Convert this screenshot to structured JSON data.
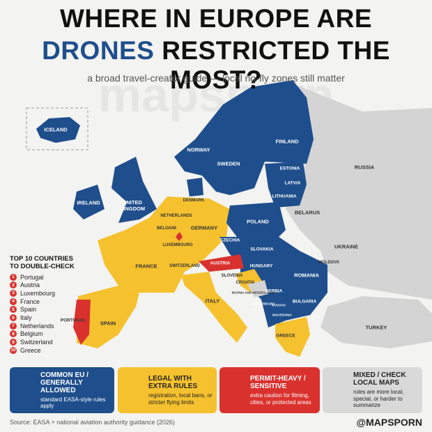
{
  "header": {
    "title_line1": "WHERE IN EUROPE ARE",
    "title_highlight": "DRONES",
    "title_line2": "RESTRICTED THE MOST?",
    "subtitle": "a broad travel-creator guide — local no-fly zones still matter"
  },
  "watermark": "mapsporn",
  "map": {
    "labels": [
      "ICELAND",
      "NORWAY",
      "SWEDEN",
      "FINLAND",
      "RUSSIA",
      "ESTONIA",
      "LATVIA",
      "LITHUANIA",
      "DENMARK",
      "IRELAND",
      "UNITED KINGDOM",
      "NETHERLANDS",
      "BELGIUM",
      "LUXEMBOURG",
      "GERMANY",
      "POLAND",
      "BELARUS",
      "CZECHIA",
      "SLOVAKIA",
      "UKRAINE",
      "MOLDOVA",
      "FRANCE",
      "SWITZERLAND",
      "AUSTRIA",
      "HUNGARY",
      "ROMANIA",
      "SLOVENIA",
      "CROATIA",
      "BOSNIA AND HERZEGOVINA",
      "SERBIA",
      "MONTENEGRO",
      "KOSOVO",
      "MACEDONIA",
      "BULGARIA",
      "ITALY",
      "PORTUGAL",
      "SPAIN",
      "GREECE",
      "TURKEY"
    ]
  },
  "top_list": {
    "title": "TOP 10 COUNTRIES TO DOUBLE-CHECK",
    "items": [
      {
        "rank": 1,
        "name": "Portugal"
      },
      {
        "rank": 2,
        "name": "Austria"
      },
      {
        "rank": 3,
        "name": "Luxembourg"
      },
      {
        "rank": 4,
        "name": "France"
      },
      {
        "rank": 5,
        "name": "Spain"
      },
      {
        "rank": 6,
        "name": "Italy"
      },
      {
        "rank": 7,
        "name": "Netherlands"
      },
      {
        "rank": 8,
        "name": "Belgium"
      },
      {
        "rank": 9,
        "name": "Switzerland"
      },
      {
        "rank": 10,
        "name": "Greece"
      }
    ]
  },
  "legend": [
    {
      "title": "COMMON EU / GENERALLY ALLOWED",
      "description": "standard EASA-style rules apply"
    },
    {
      "title": "LEGAL WITH EXTRA RULES",
      "description": "registration, local bans, or stricter flying limits"
    },
    {
      "title": "PERMIT-HEAVY / SENSITIVE",
      "description": "extra caution for filming, cities, or protected areas"
    },
    {
      "title": "MIXED / CHECK LOCAL MAPS",
      "description": "rules are more local, special, or harder to summarize"
    }
  ],
  "footer": {
    "source": "Source: EASA + national aviation authority guidance (2026)",
    "handle": "@MAPSPORN"
  }
}
